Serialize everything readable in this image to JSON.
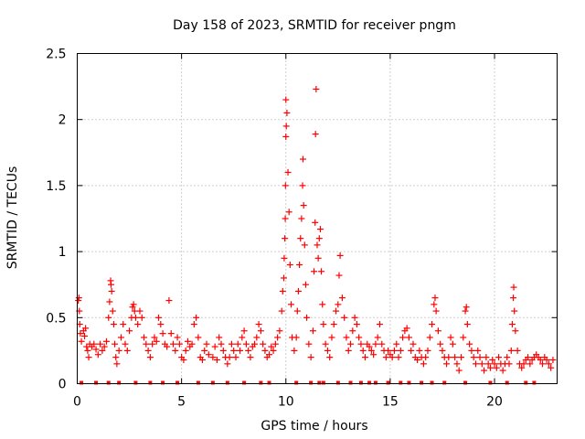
{
  "chart_data": {
    "type": "scatter",
    "title": "Day 158 of 2023, SRMTID for receiver pngm",
    "xlabel": "GPS time / hours",
    "ylabel": "SRMTID / TECUs",
    "xlim": [
      0,
      23
    ],
    "ylim": [
      0,
      2.5
    ],
    "xticks": [
      0,
      5,
      10,
      15,
      20
    ],
    "yticks": [
      0,
      0.5,
      1,
      1.5,
      2,
      2.5
    ],
    "ytick_labels": [
      "0",
      "0.5",
      "1",
      "1.5",
      "2",
      "2.5"
    ],
    "grid": true,
    "marker": "plus",
    "series_color": "#ff0000",
    "series": [
      {
        "name": "SRMTID",
        "points": [
          [
            0.05,
            0.63
          ],
          [
            0.08,
            0.65
          ],
          [
            0.1,
            0.55
          ],
          [
            0.12,
            0.45
          ],
          [
            0.15,
            0.38
          ],
          [
            0.2,
            0.32
          ],
          [
            0.3,
            0.4
          ],
          [
            0.35,
            0.36
          ],
          [
            0.4,
            0.42
          ],
          [
            0.45,
            0.28
          ],
          [
            0.5,
            0.25
          ],
          [
            0.55,
            0.2
          ],
          [
            0.6,
            0.3
          ],
          [
            0.7,
            0.28
          ],
          [
            0.8,
            0.3
          ],
          [
            0.9,
            0.26
          ],
          [
            1.0,
            0.22
          ],
          [
            1.1,
            0.3
          ],
          [
            1.2,
            0.25
          ],
          [
            1.3,
            0.28
          ],
          [
            1.4,
            0.32
          ],
          [
            1.5,
            0.5
          ],
          [
            1.55,
            0.62
          ],
          [
            1.6,
            0.78
          ],
          [
            1.62,
            0.75
          ],
          [
            1.65,
            0.7
          ],
          [
            1.7,
            0.55
          ],
          [
            1.75,
            0.45
          ],
          [
            1.8,
            0.3
          ],
          [
            1.85,
            0.2
          ],
          [
            1.9,
            0.15
          ],
          [
            2.0,
            0.25
          ],
          [
            2.1,
            0.35
          ],
          [
            2.2,
            0.45
          ],
          [
            2.3,
            0.3
          ],
          [
            2.4,
            0.25
          ],
          [
            2.5,
            0.4
          ],
          [
            2.6,
            0.5
          ],
          [
            2.65,
            0.58
          ],
          [
            2.7,
            0.6
          ],
          [
            2.75,
            0.55
          ],
          [
            2.8,
            0.5
          ],
          [
            2.9,
            0.45
          ],
          [
            3.0,
            0.55
          ],
          [
            3.1,
            0.5
          ],
          [
            3.2,
            0.35
          ],
          [
            3.3,
            0.3
          ],
          [
            3.4,
            0.25
          ],
          [
            3.5,
            0.2
          ],
          [
            3.6,
            0.3
          ],
          [
            3.7,
            0.35
          ],
          [
            3.8,
            0.32
          ],
          [
            3.9,
            0.5
          ],
          [
            4.0,
            0.45
          ],
          [
            4.1,
            0.38
          ],
          [
            4.2,
            0.3
          ],
          [
            4.3,
            0.28
          ],
          [
            4.4,
            0.63
          ],
          [
            4.5,
            0.38
          ],
          [
            4.6,
            0.3
          ],
          [
            4.7,
            0.25
          ],
          [
            4.8,
            0.35
          ],
          [
            4.9,
            0.3
          ],
          [
            5.0,
            0.2
          ],
          [
            5.1,
            0.18
          ],
          [
            5.2,
            0.25
          ],
          [
            5.3,
            0.32
          ],
          [
            5.4,
            0.28
          ],
          [
            5.5,
            0.3
          ],
          [
            5.6,
            0.45
          ],
          [
            5.7,
            0.5
          ],
          [
            5.8,
            0.35
          ],
          [
            5.9,
            0.2
          ],
          [
            6.0,
            0.18
          ],
          [
            6.1,
            0.25
          ],
          [
            6.2,
            0.3
          ],
          [
            6.3,
            0.22
          ],
          [
            6.5,
            0.2
          ],
          [
            6.6,
            0.28
          ],
          [
            6.7,
            0.18
          ],
          [
            6.8,
            0.35
          ],
          [
            6.9,
            0.3
          ],
          [
            7.0,
            0.25
          ],
          [
            7.1,
            0.2
          ],
          [
            7.2,
            0.15
          ],
          [
            7.3,
            0.2
          ],
          [
            7.4,
            0.3
          ],
          [
            7.5,
            0.25
          ],
          [
            7.6,
            0.2
          ],
          [
            7.7,
            0.3
          ],
          [
            7.8,
            0.25
          ],
          [
            7.9,
            0.35
          ],
          [
            8.0,
            0.4
          ],
          [
            8.1,
            0.3
          ],
          [
            8.2,
            0.25
          ],
          [
            8.3,
            0.2
          ],
          [
            8.4,
            0.28
          ],
          [
            8.5,
            0.3
          ],
          [
            8.6,
            0.35
          ],
          [
            8.7,
            0.45
          ],
          [
            8.8,
            0.4
          ],
          [
            8.9,
            0.3
          ],
          [
            9.0,
            0.25
          ],
          [
            9.1,
            0.2
          ],
          [
            9.2,
            0.22
          ],
          [
            9.3,
            0.28
          ],
          [
            9.4,
            0.25
          ],
          [
            9.5,
            0.3
          ],
          [
            9.6,
            0.35
          ],
          [
            9.7,
            0.4
          ],
          [
            9.8,
            0.55
          ],
          [
            9.85,
            0.7
          ],
          [
            9.9,
            0.8
          ],
          [
            9.92,
            0.95
          ],
          [
            9.95,
            1.1
          ],
          [
            9.97,
            1.25
          ],
          [
            9.98,
            1.5
          ],
          [
            10.0,
            1.87
          ],
          [
            10.02,
            1.95
          ],
          [
            10.05,
            2.05
          ],
          [
            10.0,
            2.15
          ],
          [
            10.1,
            1.6
          ],
          [
            10.15,
            1.3
          ],
          [
            10.2,
            0.9
          ],
          [
            10.25,
            0.6
          ],
          [
            10.3,
            0.35
          ],
          [
            10.4,
            0.25
          ],
          [
            10.5,
            0.35
          ],
          [
            10.55,
            0.55
          ],
          [
            10.6,
            0.7
          ],
          [
            10.65,
            0.9
          ],
          [
            10.7,
            1.1
          ],
          [
            10.75,
            1.25
          ],
          [
            10.8,
            1.5
          ],
          [
            10.82,
            1.7
          ],
          [
            10.85,
            1.35
          ],
          [
            10.9,
            1.05
          ],
          [
            10.95,
            0.75
          ],
          [
            11.0,
            0.5
          ],
          [
            11.1,
            0.3
          ],
          [
            11.2,
            0.2
          ],
          [
            11.3,
            0.4
          ],
          [
            11.35,
            0.85
          ],
          [
            11.4,
            1.22
          ],
          [
            11.42,
            1.89
          ],
          [
            11.45,
            2.23
          ],
          [
            11.5,
            1.05
          ],
          [
            11.55,
            0.95
          ],
          [
            11.6,
            1.1
          ],
          [
            11.65,
            1.17
          ],
          [
            11.7,
            0.85
          ],
          [
            11.75,
            0.6
          ],
          [
            11.8,
            0.45
          ],
          [
            11.9,
            0.3
          ],
          [
            12.0,
            0.25
          ],
          [
            12.1,
            0.2
          ],
          [
            12.2,
            0.35
          ],
          [
            12.3,
            0.45
          ],
          [
            12.4,
            0.55
          ],
          [
            12.5,
            0.6
          ],
          [
            12.55,
            0.82
          ],
          [
            12.6,
            0.97
          ],
          [
            12.7,
            0.65
          ],
          [
            12.8,
            0.5
          ],
          [
            12.9,
            0.35
          ],
          [
            13.0,
            0.25
          ],
          [
            13.1,
            0.3
          ],
          [
            13.2,
            0.4
          ],
          [
            13.3,
            0.5
          ],
          [
            13.4,
            0.45
          ],
          [
            13.5,
            0.35
          ],
          [
            13.6,
            0.3
          ],
          [
            13.7,
            0.25
          ],
          [
            13.8,
            0.2
          ],
          [
            13.9,
            0.3
          ],
          [
            14.0,
            0.28
          ],
          [
            14.1,
            0.25
          ],
          [
            14.2,
            0.22
          ],
          [
            14.3,
            0.3
          ],
          [
            14.4,
            0.35
          ],
          [
            14.5,
            0.45
          ],
          [
            14.6,
            0.3
          ],
          [
            14.7,
            0.25
          ],
          [
            14.8,
            0.2
          ],
          [
            14.9,
            0.25
          ],
          [
            15.0,
            0.22
          ],
          [
            15.1,
            0.2
          ],
          [
            15.2,
            0.25
          ],
          [
            15.3,
            0.3
          ],
          [
            15.4,
            0.2
          ],
          [
            15.5,
            0.25
          ],
          [
            15.6,
            0.35
          ],
          [
            15.7,
            0.4
          ],
          [
            15.8,
            0.42
          ],
          [
            15.9,
            0.35
          ],
          [
            16.0,
            0.25
          ],
          [
            16.1,
            0.3
          ],
          [
            16.2,
            0.2
          ],
          [
            16.3,
            0.18
          ],
          [
            16.4,
            0.25
          ],
          [
            16.5,
            0.2
          ],
          [
            16.6,
            0.15
          ],
          [
            16.7,
            0.2
          ],
          [
            16.8,
            0.25
          ],
          [
            16.9,
            0.35
          ],
          [
            17.0,
            0.45
          ],
          [
            17.1,
            0.6
          ],
          [
            17.15,
            0.65
          ],
          [
            17.2,
            0.55
          ],
          [
            17.3,
            0.4
          ],
          [
            17.4,
            0.3
          ],
          [
            17.5,
            0.25
          ],
          [
            17.6,
            0.2
          ],
          [
            17.7,
            0.15
          ],
          [
            17.8,
            0.2
          ],
          [
            17.9,
            0.35
          ],
          [
            18.0,
            0.3
          ],
          [
            18.1,
            0.2
          ],
          [
            18.2,
            0.15
          ],
          [
            18.3,
            0.1
          ],
          [
            18.4,
            0.2
          ],
          [
            18.5,
            0.35
          ],
          [
            18.6,
            0.55
          ],
          [
            18.65,
            0.58
          ],
          [
            18.7,
            0.45
          ],
          [
            18.8,
            0.3
          ],
          [
            18.9,
            0.25
          ],
          [
            19.0,
            0.2
          ],
          [
            19.1,
            0.15
          ],
          [
            19.2,
            0.25
          ],
          [
            19.3,
            0.2
          ],
          [
            19.4,
            0.15
          ],
          [
            19.5,
            0.1
          ],
          [
            19.6,
            0.2
          ],
          [
            19.7,
            0.15
          ],
          [
            19.8,
            0.12
          ],
          [
            19.9,
            0.18
          ],
          [
            20.0,
            0.15
          ],
          [
            20.1,
            0.12
          ],
          [
            20.2,
            0.2
          ],
          [
            20.3,
            0.15
          ],
          [
            20.4,
            0.1
          ],
          [
            20.5,
            0.15
          ],
          [
            20.6,
            0.2
          ],
          [
            20.7,
            0.15
          ],
          [
            20.8,
            0.25
          ],
          [
            20.85,
            0.45
          ],
          [
            20.9,
            0.65
          ],
          [
            20.92,
            0.73
          ],
          [
            20.95,
            0.55
          ],
          [
            21.0,
            0.4
          ],
          [
            21.1,
            0.25
          ],
          [
            21.2,
            0.15
          ],
          [
            21.3,
            0.12
          ],
          [
            21.4,
            0.15
          ],
          [
            21.5,
            0.18
          ],
          [
            21.6,
            0.2
          ],
          [
            21.7,
            0.15
          ],
          [
            21.8,
            0.18
          ],
          [
            21.9,
            0.2
          ],
          [
            22.0,
            0.22
          ],
          [
            22.1,
            0.2
          ],
          [
            22.2,
            0.18
          ],
          [
            22.3,
            0.15
          ],
          [
            22.4,
            0.2
          ],
          [
            22.5,
            0.18
          ],
          [
            22.6,
            0.15
          ],
          [
            22.7,
            0.12
          ],
          [
            22.8,
            0.18
          ]
        ],
        "zero_hours": [
          0.2,
          0.9,
          1.5,
          2.0,
          2.8,
          3.5,
          4.1,
          4.8,
          5.8,
          6.5,
          7.2,
          8.0,
          8.8,
          9.2,
          10.5,
          11.2,
          11.6,
          11.8,
          12.5,
          13.1,
          13.6,
          14.0,
          14.3,
          14.9,
          15.5,
          15.9,
          16.5,
          17.0,
          17.6,
          18.6,
          19.8,
          20.6,
          21.5,
          21.9
        ]
      }
    ]
  }
}
